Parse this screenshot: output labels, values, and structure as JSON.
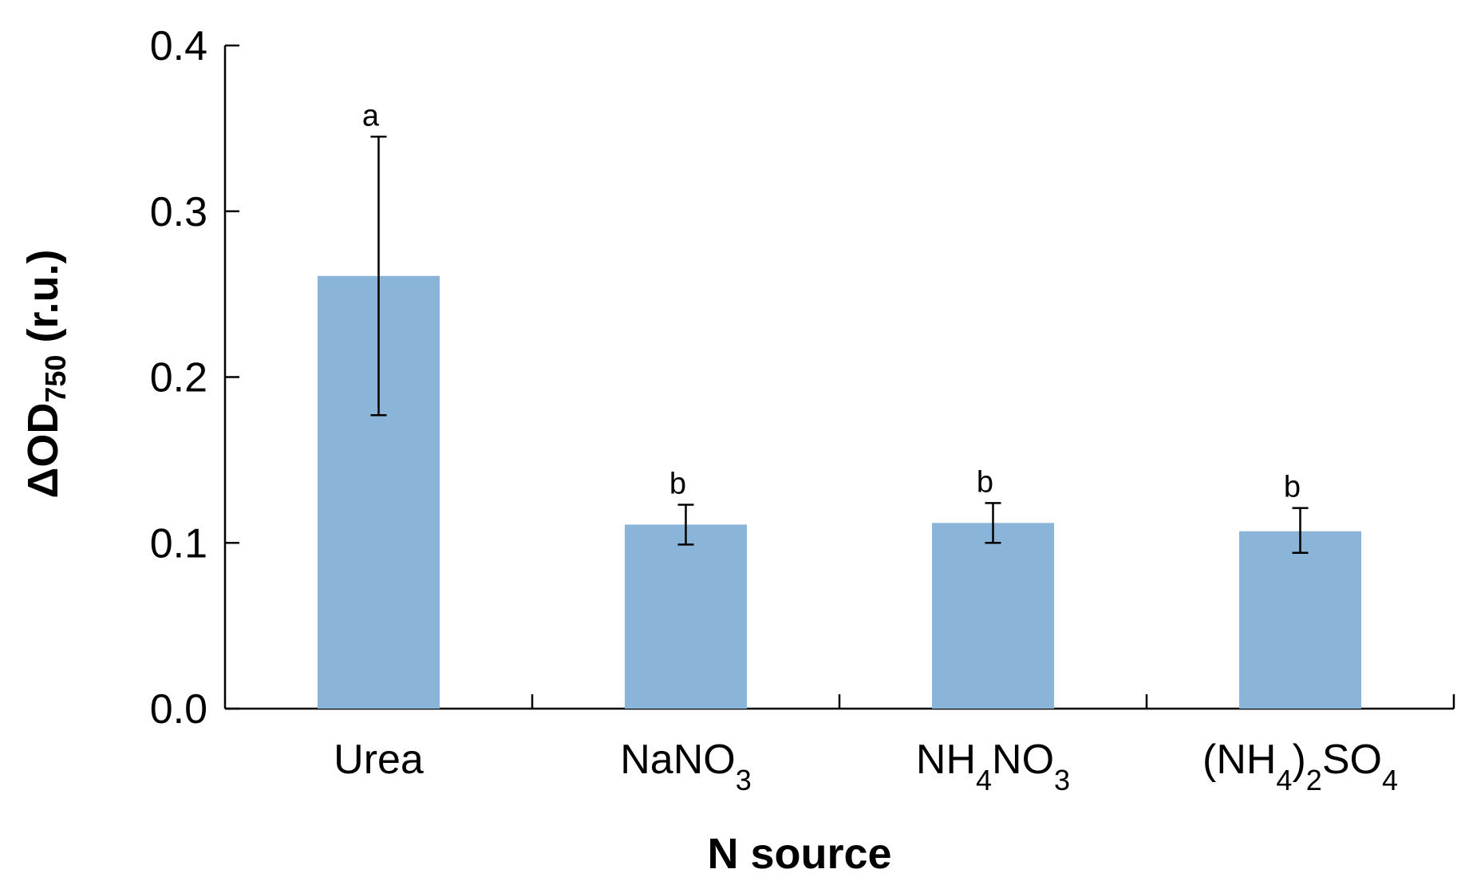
{
  "chart_data": {
    "type": "bar",
    "title": "",
    "xlabel": "N source",
    "ylabel": {
      "prefix": "ΔOD",
      "subscript": "750",
      "suffix": " (r.u.)"
    },
    "ylim": [
      0,
      0.4
    ],
    "yticks": [
      "0.0",
      "0.1",
      "0.2",
      "0.3",
      "0.4"
    ],
    "categories": [
      {
        "label": "Urea",
        "parts": [
          {
            "t": "Urea",
            "sub": false
          }
        ]
      },
      {
        "label": "NaNO3",
        "parts": [
          {
            "t": "NaNO",
            "sub": false
          },
          {
            "t": "3",
            "sub": true
          }
        ]
      },
      {
        "label": "NH4NO3",
        "parts": [
          {
            "t": "NH",
            "sub": false
          },
          {
            "t": "4",
            "sub": true
          },
          {
            "t": "NO",
            "sub": false
          },
          {
            "t": "3",
            "sub": true
          }
        ]
      },
      {
        "label": "(NH4)2SO4",
        "parts": [
          {
            "t": "(NH",
            "sub": false
          },
          {
            "t": "4",
            "sub": true
          },
          {
            "t": ")",
            "sub": false
          },
          {
            "t": "2",
            "sub": true
          },
          {
            "t": "SO",
            "sub": false
          },
          {
            "t": "4",
            "sub": true
          }
        ]
      }
    ],
    "values": [
      0.261,
      0.111,
      0.112,
      0.107
    ],
    "error_high": [
      0.345,
      0.123,
      0.124,
      0.121
    ],
    "error_low": [
      0.177,
      0.099,
      0.1,
      0.094
    ],
    "significance": [
      "a",
      "b",
      "b",
      "b"
    ],
    "grid": false,
    "bar_color": "#8bb4d9"
  }
}
